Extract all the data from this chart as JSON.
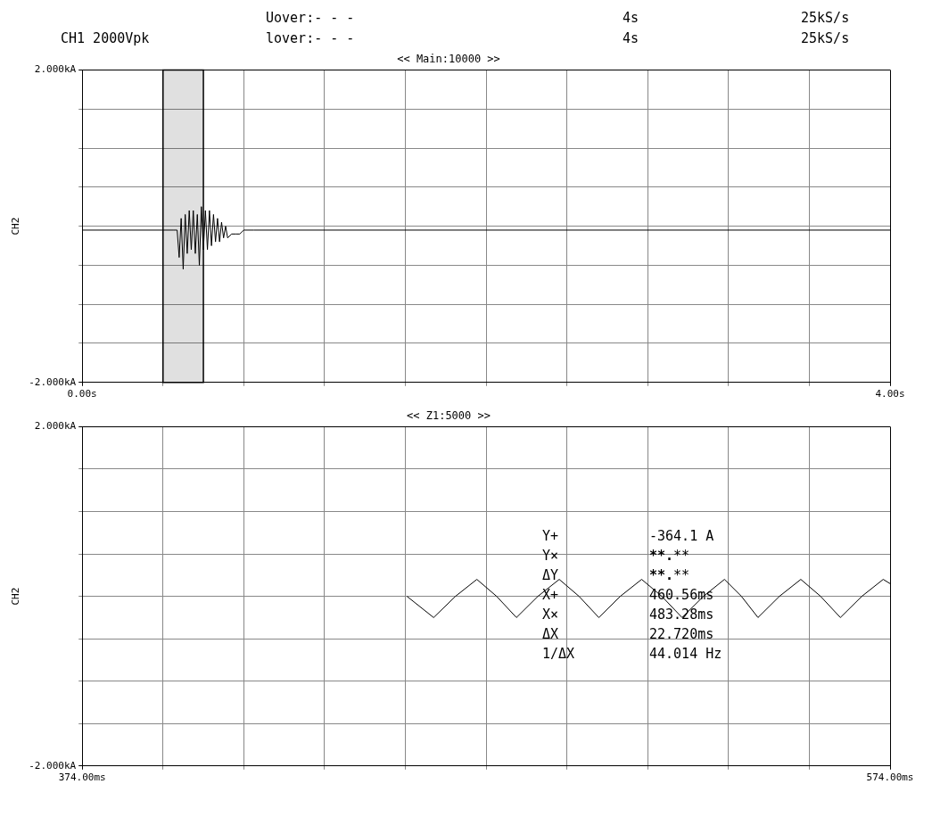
{
  "chart_data": [
    {
      "type": "line",
      "title": "<< Main:10000 >>",
      "ylabel": "CH2",
      "annotations": [
        "CH1 2000Vpk",
        "Uover:- - -",
        "lover:- - -",
        "4s",
        "25kS/s",
        "4s",
        "25kS/s"
      ],
      "x": [
        0,
        0.45,
        0.47,
        0.48,
        0.49,
        0.5,
        0.51,
        0.52,
        0.53,
        0.54,
        0.55,
        0.56,
        0.57,
        0.58,
        0.59,
        0.6,
        0.61,
        0.62,
        0.63,
        0.64,
        0.65,
        0.66,
        0.67,
        0.68,
        0.69,
        0.7,
        0.71,
        0.72,
        0.74,
        0.76,
        0.78,
        0.8,
        0.85,
        4
      ],
      "series": [
        {
          "color": "#000000",
          "values": [
            -0.05,
            -0.05,
            -0.05,
            -0.4,
            0.1,
            -0.55,
            0.15,
            -0.35,
            0.2,
            -0.3,
            0.2,
            -0.35,
            0.15,
            -0.5,
            0.25,
            -0.3,
            0.2,
            -0.3,
            0.2,
            -0.25,
            0.15,
            -0.2,
            0.1,
            -0.2,
            0.05,
            -0.15,
            0,
            -0.15,
            -0.1,
            -0.1,
            -0.1,
            -0.05,
            -0.05,
            -0.05
          ]
        }
      ],
      "xlim": [
        0,
        4
      ],
      "ylim": [
        -2,
        2
      ],
      "xticks": [
        {
          "value": 0,
          "label": "0.00s"
        },
        {
          "value": 0.4,
          "label": null
        },
        {
          "value": 0.8,
          "label": null
        },
        {
          "value": 1.2,
          "label": null
        },
        {
          "value": 1.6,
          "label": null
        },
        {
          "value": 2,
          "label": null
        },
        {
          "value": 2.4,
          "label": null
        },
        {
          "value": 2.8,
          "label": null
        },
        {
          "value": 3.2,
          "label": null
        },
        {
          "value": 3.6,
          "label": null
        },
        {
          "value": 4,
          "label": "4.00s"
        }
      ],
      "yticks": [
        {
          "value": -2,
          "label": "-2.000kA"
        },
        {
          "value": -1.5,
          "label": null
        },
        {
          "value": -1,
          "label": null
        },
        {
          "value": -0.5,
          "label": null
        },
        {
          "value": 0,
          "label": null
        },
        {
          "value": 0.5,
          "label": null
        },
        {
          "value": 1,
          "label": null
        },
        {
          "value": 1.5,
          "label": null
        },
        {
          "value": 2,
          "label": "2.000kA"
        }
      ],
      "bands": [
        {
          "axis": "x",
          "from": 0.4,
          "to": 0.6,
          "color": "#000000"
        }
      ],
      "grid": true,
      "legend": false,
      "marker": "none",
      "line_style": "solid"
    },
    {
      "type": "line",
      "title": "<< Z1:5000 >>",
      "ylabel": "CH2",
      "annotations": [
        "Y+",
        "-364.1 A",
        "Y×",
        "****.****",
        "ΔY",
        "****.****",
        "X+",
        "460.56ms",
        "X×",
        "483.28ms",
        "ΔX",
        "22.720ms",
        "1/ΔX",
        "44.014 Hz"
      ],
      "x": [
        454.4,
        461,
        466.4,
        471.7,
        476.6,
        481.5,
        486.8,
        492.1,
        497,
        501.9,
        507.2,
        512.5,
        517.5,
        522.5,
        527.8,
        533,
        537.2,
        541.3,
        546.6,
        551.9,
        556.8,
        561.7,
        567,
        572.3,
        574
      ],
      "series": [
        {
          "color": "#000000",
          "values": [
            0,
            -0.25,
            0,
            0.2,
            0,
            -0.25,
            0,
            0.2,
            0,
            -0.25,
            0,
            0.2,
            0,
            -0.25,
            0,
            0.2,
            0,
            -0.25,
            0,
            0.2,
            0,
            -0.25,
            0,
            0.2,
            0.15
          ]
        }
      ],
      "xlim": [
        374,
        574
      ],
      "ylim": [
        -2,
        2
      ],
      "xticks": [
        {
          "value": 374,
          "label": "374.00ms"
        },
        {
          "value": 394,
          "label": null
        },
        {
          "value": 414,
          "label": null
        },
        {
          "value": 434,
          "label": null
        },
        {
          "value": 454,
          "label": null
        },
        {
          "value": 474,
          "label": null
        },
        {
          "value": 494,
          "label": null
        },
        {
          "value": 514,
          "label": null
        },
        {
          "value": 534,
          "label": null
        },
        {
          "value": 554,
          "label": null
        },
        {
          "value": 574,
          "label": "574.00ms"
        }
      ],
      "yticks": [
        {
          "value": -2,
          "label": "-2.000kA"
        },
        {
          "value": -1.5,
          "label": null
        },
        {
          "value": -1,
          "label": null
        },
        {
          "value": -0.5,
          "label": null
        },
        {
          "value": 0,
          "label": null
        },
        {
          "value": 0.5,
          "label": null
        },
        {
          "value": 1,
          "label": null
        },
        {
          "value": 1.5,
          "label": null
        },
        {
          "value": 2,
          "label": "2.000kA"
        }
      ],
      "grid": true,
      "legend": false,
      "marker": "none",
      "line_style": "solid"
    }
  ]
}
